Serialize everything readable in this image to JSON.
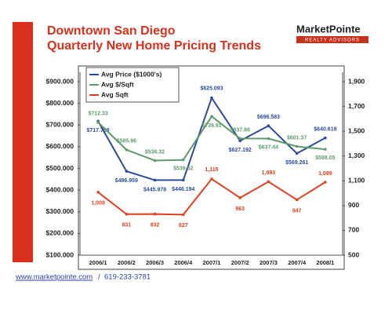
{
  "header": {
    "title": [
      "Downtown San Diego",
      "Quarterly New Home Pricing Trends"
    ],
    "logo": {
      "name": "MarketPointe",
      "tagline": "REALTY ADVISORS"
    }
  },
  "footer": {
    "url": "www.marketpointe.com",
    "separator": "/",
    "phone": "619-233-3781"
  },
  "chart_data": {
    "type": "line",
    "categories": [
      "2006/1",
      "2006/2",
      "2006/3",
      "2006/4",
      "2007/1",
      "2007/2",
      "2007/3",
      "2007/4",
      "2008/1"
    ],
    "series": [
      {
        "name": "Avg Price ($1000's)",
        "color": "#2b4c9e",
        "values": [
          717.708,
          486.959,
          445.978,
          446.194,
          825.093,
          627.192,
          696.583,
          569.261,
          640.619
        ],
        "value_labels": [
          "$717.708",
          "$486.959",
          "$445.978",
          "$446.194",
          "$825.093",
          "$627.192",
          "$696.583",
          "$569.261",
          "$640.619"
        ]
      },
      {
        "name": "Avg $/Sqft",
        "color": "#5e9a6c",
        "values": [
          712.33,
          585.96,
          536.32,
          539.52,
          739.91,
          637.88,
          637.44,
          601.37,
          588.05
        ],
        "value_labels": [
          "$712.33",
          "$585.96",
          "$536.32",
          "$539.52",
          "$739.91",
          "$637.88",
          "$637.44",
          "$601.37",
          "$588.05"
        ]
      },
      {
        "name": "Avg Sqft",
        "color": "#e2401e",
        "axis": "y2",
        "values": [
          1008,
          831,
          832,
          827,
          1115,
          963,
          1093,
          947,
          1089
        ],
        "value_labels": [
          "1,008",
          "831",
          "832",
          "827",
          "1,115",
          "963",
          "1,093",
          "947",
          "1,089"
        ]
      }
    ],
    "ylim": [
      100,
      900
    ],
    "yticks": [
      {
        "value": 100,
        "label": "$100.000"
      },
      {
        "value": 200,
        "label": "$200.000"
      },
      {
        "value": 300,
        "label": "$300.000"
      },
      {
        "value": 400,
        "label": "$400.000"
      },
      {
        "value": 500,
        "label": "$500.000"
      },
      {
        "value": 600,
        "label": "$600.000"
      },
      {
        "value": 700,
        "label": "$700.000"
      },
      {
        "value": 800,
        "label": "$800.000"
      },
      {
        "value": 900,
        "label": "$900.000"
      }
    ],
    "y2lim": [
      500,
      1900
    ],
    "y2ticks": [
      500,
      700,
      900,
      {
        "value": 1100,
        "label": "1,100"
      },
      {
        "value": 1300,
        "label": "1,300"
      },
      {
        "value": 1500,
        "label": "1,500"
      },
      {
        "value": 1700,
        "label": "1,700"
      },
      {
        "value": 1900,
        "label": "1,900"
      }
    ],
    "legend": "top-left"
  }
}
